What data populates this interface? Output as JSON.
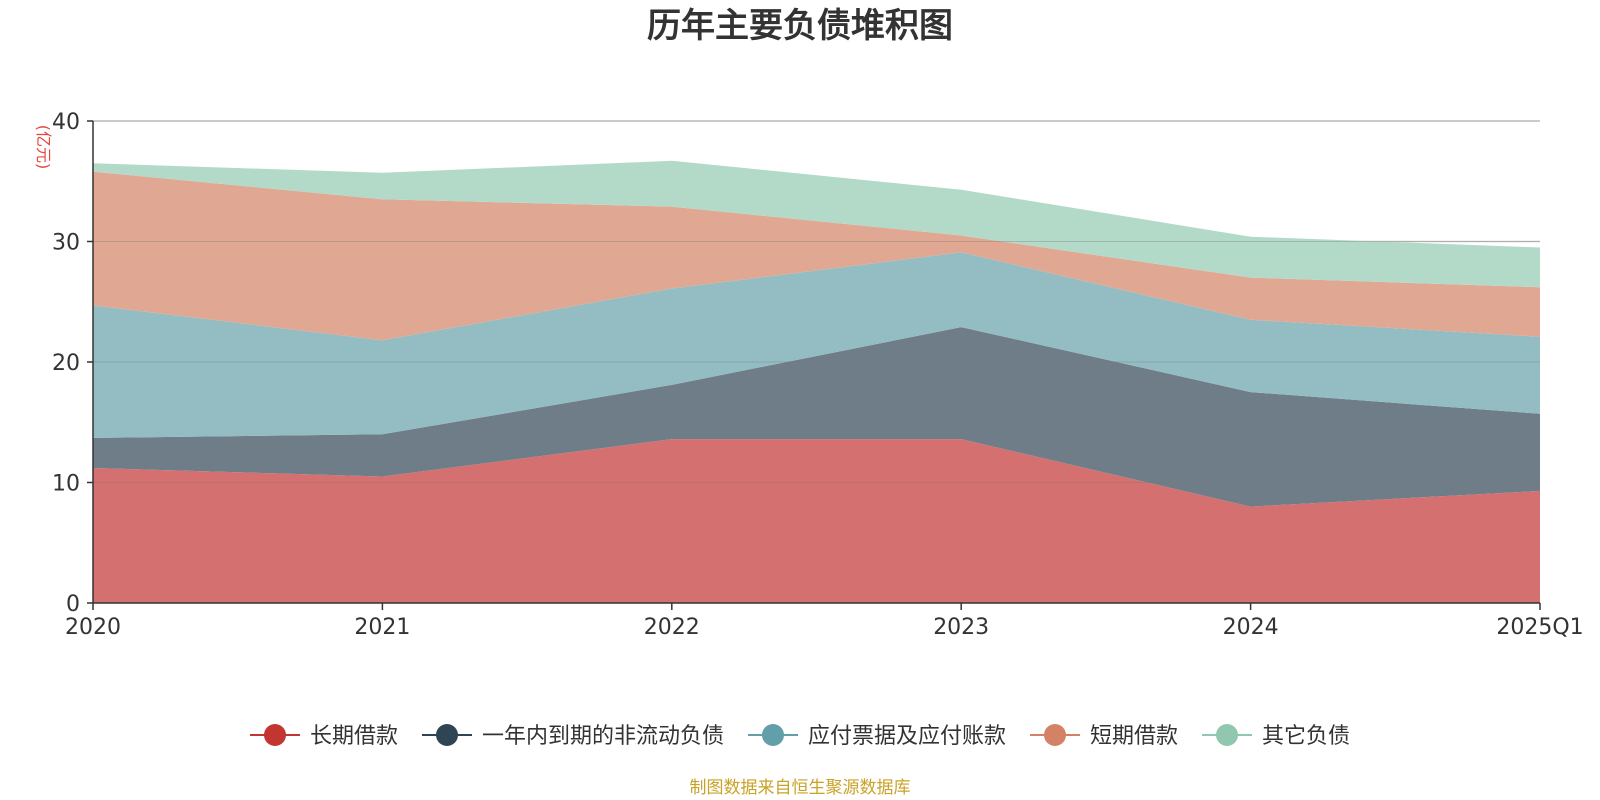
{
  "title": "历年主要负债堆积图",
  "unit_label": "(亿元)",
  "source": "制图数据来自恒生聚源数据库",
  "chart_data": {
    "type": "area",
    "stacked": true,
    "title": "历年主要负债堆积图",
    "ylabel": "(亿元)",
    "xlabel": "",
    "x": [
      "2020",
      "2021",
      "2022",
      "2023",
      "2024",
      "2025Q1"
    ],
    "ylim": [
      0,
      40
    ],
    "yticks": [
      0,
      10,
      20,
      30,
      40
    ],
    "grid": true,
    "legend_position": "bottom",
    "series": [
      {
        "name": "长期借款",
        "values": [
          11.2,
          10.5,
          13.6,
          13.6,
          8.0,
          9.3
        ],
        "color": "#c23531",
        "area_color": "#d47170"
      },
      {
        "name": "一年内到期的非流动负债",
        "values": [
          2.5,
          3.5,
          4.5,
          9.3,
          9.5,
          6.4
        ],
        "color": "#2f4554",
        "area_color": "#6f7d88"
      },
      {
        "name": "应付票据及应付账款",
        "values": [
          11.0,
          7.8,
          8.0,
          6.2,
          6.0,
          6.4
        ],
        "color": "#61a0a8",
        "area_color": "#93bdc2"
      },
      {
        "name": "短期借款",
        "values": [
          11.1,
          11.7,
          6.8,
          1.4,
          3.5,
          4.1
        ],
        "color": "#d48265",
        "area_color": "#e0a893"
      },
      {
        "name": "其它负债",
        "values": [
          0.7,
          2.2,
          3.8,
          3.8,
          3.4,
          3.3
        ],
        "color": "#91c7ae",
        "area_color": "#b3dac9"
      }
    ]
  }
}
